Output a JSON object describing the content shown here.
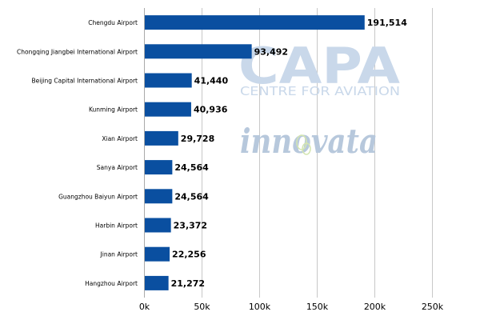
{
  "chart_data": {
    "type": "bar",
    "orientation": "horizontal",
    "categories": [
      "Chengdu Airport",
      "Chongqing Jiangbei International Airport",
      "Beijing Capital International Airport",
      "Kunming Airport",
      "Xian Airport",
      "Sanya Airport",
      "Guangzhou Baiyun Airport",
      "Harbin Airport",
      "Jinan Airport",
      "Hangzhou Airport"
    ],
    "values": [
      191514,
      93492,
      41440,
      40936,
      29728,
      24564,
      24564,
      23372,
      22256,
      21272
    ],
    "data_labels": [
      "191,514",
      "93,492",
      "41,440",
      "40,936",
      "29,728",
      "24,564",
      "24,564",
      "23,372",
      "22,256",
      "21,272"
    ],
    "xticks": [
      0,
      50000,
      100000,
      150000,
      200000,
      250000
    ],
    "xtick_labels": [
      "0k",
      "50k",
      "100k",
      "150k",
      "200k",
      "250k"
    ],
    "xlim": [
      0,
      250000
    ],
    "grid": true,
    "title": "",
    "xlabel": "",
    "ylabel": ""
  },
  "colors": {
    "bar": "#0a4fa0",
    "grid": "#c8c8c8",
    "watermark_capa": "#c9d8ea",
    "watermark_innovata": "#b7c8dc",
    "watermark_leaf": "#d4e6b0"
  },
  "watermarks": {
    "capa": "CAPA",
    "centre": "CENTRE FOR AVIATION",
    "innovata": "innovata"
  }
}
